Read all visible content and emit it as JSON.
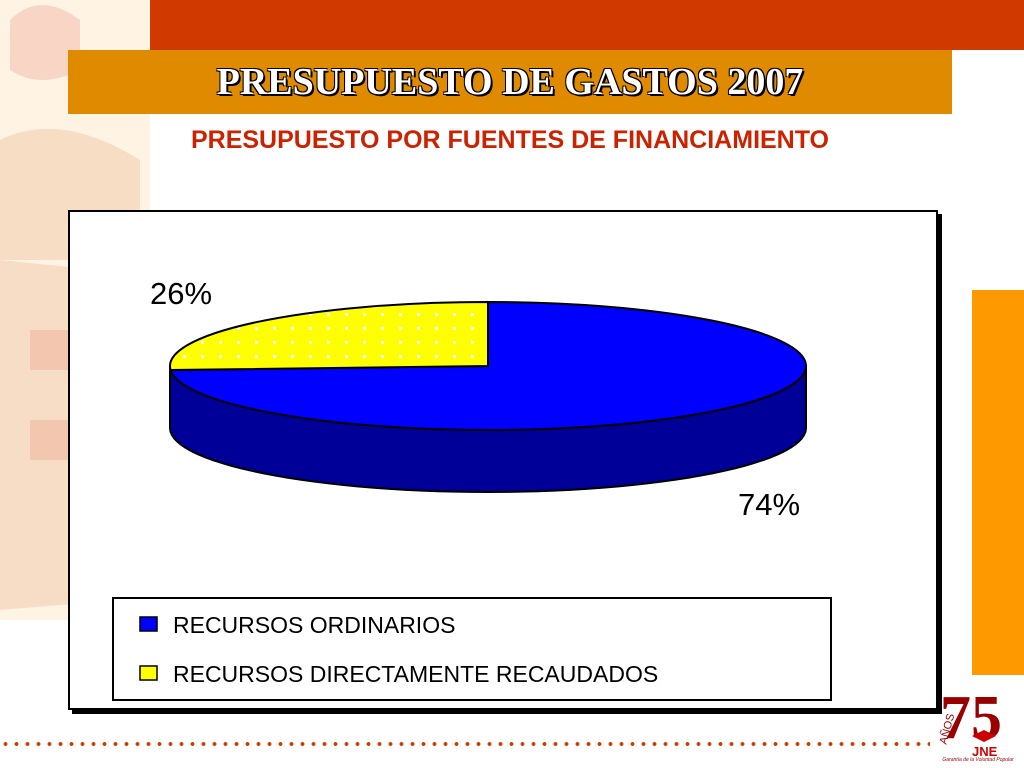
{
  "header": {
    "title": "PRESUPUESTO DE GASTOS 2007",
    "subtitle": "PRESUPUESTO POR FUENTES DE FINANCIAMIENTO"
  },
  "logo": {
    "number": "75",
    "years": "AÑOS",
    "brand": "JNE",
    "caption": "Garantía de la Voluntad Popular"
  },
  "colors": {
    "brand_red": "#d03a00",
    "brand_orange": "#e08a00",
    "side_orange": "#ff9900",
    "series_blue": "#0000ff",
    "series_blue_dark": "#000099",
    "series_yellow": "#ffff00"
  },
  "chart_data": {
    "type": "pie",
    "style": "3d",
    "title": "",
    "categories": [
      "RECURSOS ORDINARIOS",
      "RECURSOS DIRECTAMENTE RECAUDADOS"
    ],
    "values": [
      74,
      26
    ],
    "data_labels": [
      "74%",
      "26%"
    ],
    "legend_position": "bottom"
  }
}
